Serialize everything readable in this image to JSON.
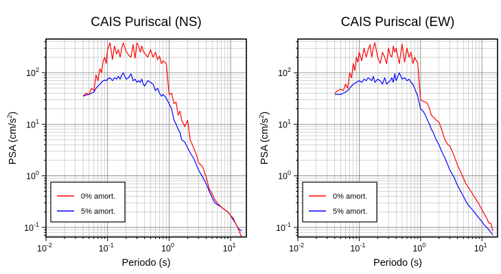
{
  "chart_data": [
    {
      "type": "line",
      "title": "CAIS Puriscal (NS)",
      "xlabel": "Periodo (s)",
      "ylabel_main": "PSA (cm/s",
      "ylabel_sup": "2",
      "ylabel_close": ")",
      "x_scale": "log",
      "y_scale": "log",
      "xlim": [
        0.01,
        18
      ],
      "ylim": [
        0.065,
        450
      ],
      "x_ticks": [
        {
          "value": 0.01,
          "base": "10",
          "exp": "-2"
        },
        {
          "value": 0.1,
          "base": "10",
          "exp": "-1"
        },
        {
          "value": 1,
          "base": "10",
          "exp": "0"
        },
        {
          "value": 10,
          "base": "10",
          "exp": "1"
        }
      ],
      "y_ticks": [
        {
          "value": 0.1,
          "base": "10",
          "exp": "-1"
        },
        {
          "value": 1,
          "base": "10",
          "exp": "0"
        },
        {
          "value": 10,
          "base": "10",
          "exp": "1"
        },
        {
          "value": 100,
          "base": "10",
          "exp": "2"
        }
      ],
      "grid": true,
      "legend_position": "bottom-left",
      "series": [
        {
          "name": "0% amort.",
          "color": "#ff0000",
          "x": [
            0.04,
            0.045,
            0.05,
            0.055,
            0.06,
            0.065,
            0.07,
            0.075,
            0.08,
            0.085,
            0.09,
            0.095,
            0.1,
            0.11,
            0.12,
            0.13,
            0.14,
            0.15,
            0.16,
            0.17,
            0.18,
            0.2,
            0.22,
            0.24,
            0.26,
            0.28,
            0.3,
            0.32,
            0.34,
            0.36,
            0.38,
            0.4,
            0.45,
            0.5,
            0.55,
            0.6,
            0.65,
            0.7,
            0.75,
            0.8,
            0.9,
            1.0,
            1.1,
            1.2,
            1.3,
            1.4,
            1.5,
            1.6,
            1.8,
            2.0,
            2.2,
            2.5,
            2.8,
            3.0,
            3.5,
            4.0,
            4.5,
            5.0,
            5.5,
            6.0,
            7.0,
            8.0,
            9.0,
            10.0,
            11.0,
            12.0,
            13.0,
            14.0,
            15.0
          ],
          "values": [
            35,
            40,
            38,
            50,
            45,
            90,
            70,
            120,
            100,
            170,
            200,
            150,
            280,
            380,
            180,
            330,
            230,
            280,
            200,
            300,
            380,
            260,
            220,
            200,
            350,
            190,
            380,
            330,
            250,
            330,
            260,
            240,
            200,
            280,
            200,
            250,
            180,
            210,
            150,
            170,
            150,
            38,
            40,
            25,
            27,
            15,
            18,
            12,
            9,
            12,
            5,
            3.5,
            2.5,
            1.8,
            1.5,
            0.95,
            0.55,
            0.45,
            0.35,
            0.3,
            0.25,
            0.22,
            0.2,
            0.17,
            0.15,
            0.12,
            0.1,
            0.08,
            0.065
          ]
        },
        {
          "name": "5% amort.",
          "color": "#0000ff",
          "x": [
            0.04,
            0.045,
            0.05,
            0.055,
            0.06,
            0.065,
            0.07,
            0.075,
            0.08,
            0.085,
            0.09,
            0.095,
            0.1,
            0.11,
            0.12,
            0.13,
            0.14,
            0.15,
            0.16,
            0.17,
            0.18,
            0.2,
            0.22,
            0.24,
            0.26,
            0.28,
            0.3,
            0.32,
            0.34,
            0.36,
            0.38,
            0.4,
            0.45,
            0.5,
            0.55,
            0.6,
            0.65,
            0.7,
            0.75,
            0.8,
            0.9,
            1.0,
            1.1,
            1.2,
            1.3,
            1.4,
            1.5,
            1.6,
            1.8,
            2.0,
            2.2,
            2.5,
            2.8,
            3.0,
            3.5,
            4.0,
            4.5,
            5.0,
            5.5,
            6.0,
            7.0,
            8.0,
            9.0,
            10.0,
            11.0,
            12.0,
            13.0,
            14.0,
            15.0
          ],
          "values": [
            35,
            37,
            38,
            40,
            42,
            50,
            55,
            60,
            65,
            70,
            72,
            70,
            75,
            80,
            70,
            80,
            75,
            85,
            75,
            90,
            100,
            75,
            80,
            95,
            70,
            75,
            65,
            70,
            65,
            75,
            60,
            55,
            70,
            65,
            60,
            45,
            50,
            40,
            35,
            38,
            32,
            25,
            20,
            12,
            10,
            8,
            7,
            5,
            4.5,
            3.5,
            2.8,
            2.2,
            1.6,
            1.3,
            0.95,
            0.7,
            0.5,
            0.38,
            0.3,
            0.28,
            0.25,
            0.22,
            0.2,
            0.17,
            0.14,
            0.12,
            0.1,
            0.09,
            0.085
          ]
        }
      ]
    },
    {
      "type": "line",
      "title": "CAIS Puriscal (EW)",
      "xlabel": "Periodo (s)",
      "ylabel_main": "PSA (cm/s",
      "ylabel_sup": "2",
      "ylabel_close": ")",
      "x_scale": "log",
      "y_scale": "log",
      "xlim": [
        0.01,
        18
      ],
      "ylim": [
        0.065,
        450
      ],
      "x_ticks": [
        {
          "value": 0.01,
          "base": "10",
          "exp": "-2"
        },
        {
          "value": 0.1,
          "base": "10",
          "exp": "-1"
        },
        {
          "value": 1,
          "base": "10",
          "exp": "0"
        },
        {
          "value": 10,
          "base": "10",
          "exp": "1"
        }
      ],
      "y_ticks": [
        {
          "value": 0.1,
          "base": "10",
          "exp": "-1"
        },
        {
          "value": 1,
          "base": "10",
          "exp": "0"
        },
        {
          "value": 10,
          "base": "10",
          "exp": "1"
        },
        {
          "value": 100,
          "base": "10",
          "exp": "2"
        }
      ],
      "grid": true,
      "legend_position": "bottom-left",
      "series": [
        {
          "name": "0% amort.",
          "color": "#ff0000",
          "x": [
            0.04,
            0.045,
            0.05,
            0.055,
            0.06,
            0.065,
            0.07,
            0.075,
            0.08,
            0.085,
            0.09,
            0.095,
            0.1,
            0.11,
            0.12,
            0.13,
            0.14,
            0.15,
            0.16,
            0.17,
            0.18,
            0.2,
            0.22,
            0.24,
            0.26,
            0.28,
            0.3,
            0.32,
            0.34,
            0.36,
            0.38,
            0.4,
            0.45,
            0.5,
            0.55,
            0.6,
            0.65,
            0.7,
            0.75,
            0.8,
            0.9,
            1.0,
            1.1,
            1.2,
            1.3,
            1.4,
            1.5,
            1.6,
            1.8,
            2.0,
            2.2,
            2.5,
            2.8,
            3.0,
            3.5,
            4.0,
            4.5,
            5.0,
            5.5,
            6.0,
            7.0,
            8.0,
            9.0,
            10.0,
            11.0,
            12.0,
            13.0,
            14.0,
            15.0
          ],
          "values": [
            40,
            45,
            48,
            45,
            60,
            50,
            100,
            80,
            150,
            110,
            200,
            160,
            250,
            170,
            300,
            200,
            280,
            350,
            200,
            300,
            380,
            200,
            150,
            250,
            200,
            150,
            300,
            220,
            200,
            330,
            250,
            300,
            150,
            360,
            160,
            300,
            200,
            250,
            150,
            200,
            150,
            30,
            28,
            27,
            25,
            20,
            15,
            14,
            12,
            11,
            8,
            5,
            4,
            3.8,
            2.5,
            1.6,
            1.2,
            0.9,
            0.7,
            0.6,
            0.45,
            0.35,
            0.28,
            0.22,
            0.18,
            0.15,
            0.12,
            0.12,
            0.085
          ]
        },
        {
          "name": "5% amort.",
          "color": "#0000ff",
          "x": [
            0.04,
            0.045,
            0.05,
            0.055,
            0.06,
            0.065,
            0.07,
            0.075,
            0.08,
            0.085,
            0.09,
            0.095,
            0.1,
            0.11,
            0.12,
            0.13,
            0.14,
            0.15,
            0.16,
            0.17,
            0.18,
            0.2,
            0.22,
            0.24,
            0.26,
            0.28,
            0.3,
            0.32,
            0.34,
            0.36,
            0.38,
            0.4,
            0.45,
            0.5,
            0.55,
            0.6,
            0.65,
            0.7,
            0.75,
            0.8,
            0.9,
            1.0,
            1.1,
            1.2,
            1.3,
            1.4,
            1.5,
            1.6,
            1.8,
            2.0,
            2.2,
            2.5,
            2.8,
            3.0,
            3.5,
            4.0,
            4.5,
            5.0,
            5.5,
            6.0,
            7.0,
            8.0,
            9.0,
            10.0,
            11.0,
            12.0,
            13.0,
            14.0,
            15.0
          ],
          "values": [
            38,
            38,
            38,
            40,
            42,
            45,
            50,
            55,
            60,
            62,
            65,
            68,
            70,
            65,
            75,
            70,
            80,
            75,
            70,
            85,
            65,
            75,
            70,
            60,
            80,
            60,
            65,
            70,
            80,
            65,
            95,
            70,
            100,
            75,
            80,
            70,
            75,
            65,
            60,
            50,
            35,
            20,
            18,
            15,
            12,
            10,
            8,
            7,
            5,
            4,
            3,
            2.2,
            1.6,
            1.3,
            0.95,
            0.65,
            0.5,
            0.4,
            0.32,
            0.27,
            0.22,
            0.18,
            0.15,
            0.13,
            0.11,
            0.1,
            0.09,
            0.08,
            0.072
          ]
        }
      ]
    }
  ]
}
